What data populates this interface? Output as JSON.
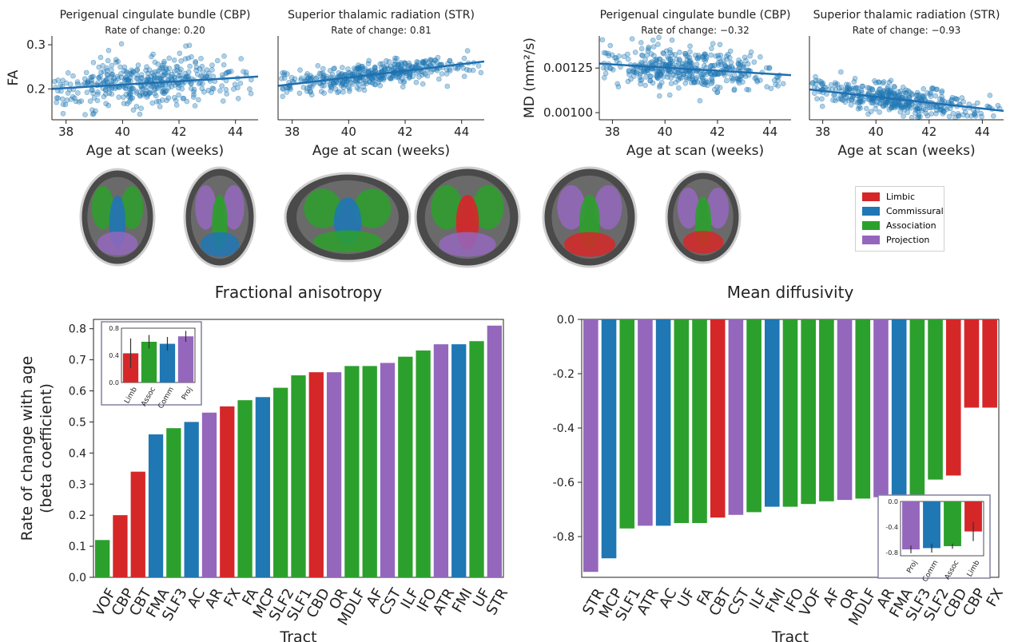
{
  "colors": {
    "limbic": "#d62728",
    "commissural": "#1f77b4",
    "association": "#2ca02c",
    "projection": "#9467bd",
    "scatter": "#1f77b4"
  },
  "legend": {
    "items": [
      {
        "label": "Limbic",
        "color": "#d62728"
      },
      {
        "label": "Commissural",
        "color": "#1f77b4"
      },
      {
        "label": "Association",
        "color": "#2ca02c"
      },
      {
        "label": "Projection",
        "color": "#9467bd"
      }
    ]
  },
  "brain_images": {
    "views": [
      "axial-inferior",
      "axial-superior",
      "sagittal-lateral",
      "sagittal-medial",
      "coronal-anterior",
      "coronal-posterior"
    ]
  },
  "chart_data": [
    {
      "type": "scatter",
      "title": "Perigenual cingulate bundle (CBP)",
      "subtitle": "Rate of change: 0.20",
      "xlabel": "Age at scan (weeks)",
      "ylabel": "FA",
      "xlim": [
        37.5,
        44.8
      ],
      "ylim": [
        0.13,
        0.32
      ],
      "xticks": [
        "38",
        "40",
        "42",
        "44"
      ],
      "yticks": [
        "0.2",
        "0.3"
      ],
      "fit": {
        "x": [
          37.5,
          44.8
        ],
        "y": [
          0.2,
          0.228
        ]
      }
    },
    {
      "type": "scatter",
      "title": "Superior thalamic radiation (STR)",
      "subtitle": "Rate of change: 0.81",
      "xlabel": "Age at scan (weeks)",
      "ylabel": "",
      "xlim": [
        37.5,
        44.8
      ],
      "ylim": [
        0.13,
        0.32
      ],
      "xticks": [
        "38",
        "40",
        "42",
        "44"
      ],
      "yticks": [],
      "fit": {
        "x": [
          37.5,
          44.8
        ],
        "y": [
          0.207,
          0.262
        ]
      }
    },
    {
      "type": "scatter",
      "title": "Perigenual cingulate bundle (CBP)",
      "subtitle": "Rate of change: −0.32",
      "xlabel": "Age at scan (weeks)",
      "ylabel": "MD (mm²/s)",
      "xlim": [
        37.5,
        44.8
      ],
      "ylim": [
        0.00096,
        0.00143
      ],
      "xticks": [
        "38",
        "40",
        "42",
        "44"
      ],
      "yticks": [
        "0.00100",
        "0.00125"
      ],
      "fit": {
        "x": [
          37.5,
          44.8
        ],
        "y": [
          0.001275,
          0.00121
        ]
      }
    },
    {
      "type": "scatter",
      "title": "Superior thalamic radiation (STR)",
      "subtitle": "Rate of change: −0.93",
      "xlabel": "Age at scan (weeks)",
      "ylabel": "",
      "xlim": [
        37.5,
        44.8
      ],
      "ylim": [
        0.00096,
        0.00143
      ],
      "xticks": [
        "38",
        "40",
        "42",
        "44"
      ],
      "yticks": [],
      "fit": {
        "x": [
          37.5,
          44.8
        ],
        "y": [
          0.00113,
          0.00101
        ]
      }
    },
    {
      "type": "bar",
      "title": "Fractional anisotropy",
      "xlabel": "Tract",
      "ylabel": "Rate of change with age\n(beta coefficient)",
      "ylim": [
        0,
        0.83
      ],
      "yticks": [
        "0.0",
        "0.1",
        "0.2",
        "0.3",
        "0.4",
        "0.5",
        "0.6",
        "0.7",
        "0.8"
      ],
      "categories": [
        "VOF",
        "CBP",
        "CBT",
        "FMA",
        "SLF3",
        "AC",
        "AR",
        "FX",
        "FA",
        "MCP",
        "SLF2",
        "SLF1",
        "CBD",
        "OR",
        "MDLF",
        "AF",
        "CST",
        "ILF",
        "IFO",
        "ATR",
        "FMI",
        "UF",
        "STR"
      ],
      "values": [
        0.12,
        0.2,
        0.34,
        0.46,
        0.48,
        0.5,
        0.53,
        0.55,
        0.57,
        0.58,
        0.61,
        0.65,
        0.66,
        0.66,
        0.68,
        0.68,
        0.69,
        0.71,
        0.73,
        0.75,
        0.75,
        0.76,
        0.81
      ],
      "groups": [
        "association",
        "limbic",
        "limbic",
        "commissural",
        "association",
        "commissural",
        "projection",
        "limbic",
        "association",
        "commissural",
        "association",
        "association",
        "limbic",
        "projection",
        "association",
        "association",
        "projection",
        "association",
        "association",
        "projection",
        "commissural",
        "association",
        "projection"
      ],
      "inset": {
        "type": "bar",
        "categories": [
          "Limb",
          "Assoc",
          "Comm",
          "Proj"
        ],
        "values": [
          0.43,
          0.6,
          0.57,
          0.68
        ],
        "errors": [
          0.22,
          0.1,
          0.1,
          0.08
        ],
        "groups": [
          "limbic",
          "association",
          "commissural",
          "projection"
        ],
        "ylim": [
          0,
          0.8
        ],
        "yticks": [
          "0.0",
          "0.4",
          "0.8"
        ]
      }
    },
    {
      "type": "bar",
      "title": "Mean diffusivity",
      "xlabel": "Tract",
      "ylabel": "",
      "ylim": [
        -0.95,
        0
      ],
      "yticks": [
        "0.0",
        "-0.2",
        "-0.4",
        "-0.6",
        "-0.8"
      ],
      "categories": [
        "STR",
        "MCP",
        "SLF1",
        "ATR",
        "AC",
        "UF",
        "FA",
        "CBT",
        "CST",
        "ILF",
        "FMI",
        "IFO",
        "VOF",
        "AF",
        "OR",
        "MDLF",
        "AR",
        "FMA",
        "SLF3",
        "SLF2",
        "CBD",
        "CBP",
        "FX"
      ],
      "values": [
        -0.93,
        -0.88,
        -0.77,
        -0.76,
        -0.76,
        -0.75,
        -0.75,
        -0.73,
        -0.72,
        -0.71,
        -0.69,
        -0.69,
        -0.68,
        -0.67,
        -0.665,
        -0.66,
        -0.655,
        -0.655,
        -0.65,
        -0.59,
        -0.575,
        -0.325,
        -0.325
      ],
      "groups": [
        "projection",
        "commissural",
        "association",
        "projection",
        "commissural",
        "association",
        "association",
        "limbic",
        "projection",
        "association",
        "commissural",
        "association",
        "association",
        "association",
        "projection",
        "association",
        "projection",
        "commissural",
        "association",
        "association",
        "limbic",
        "limbic",
        "limbic"
      ],
      "inset": {
        "type": "bar",
        "categories": [
          "Proj",
          "Comm",
          "Assoc",
          "Limb"
        ],
        "values": [
          -0.75,
          -0.73,
          -0.7,
          -0.47
        ],
        "errors": [
          0.06,
          0.07,
          0.04,
          0.15
        ],
        "groups": [
          "projection",
          "commissural",
          "association",
          "limbic"
        ],
        "ylim": [
          -0.85,
          0
        ],
        "yticks": [
          "0.0",
          "-0.4",
          "-0.8"
        ]
      }
    }
  ]
}
